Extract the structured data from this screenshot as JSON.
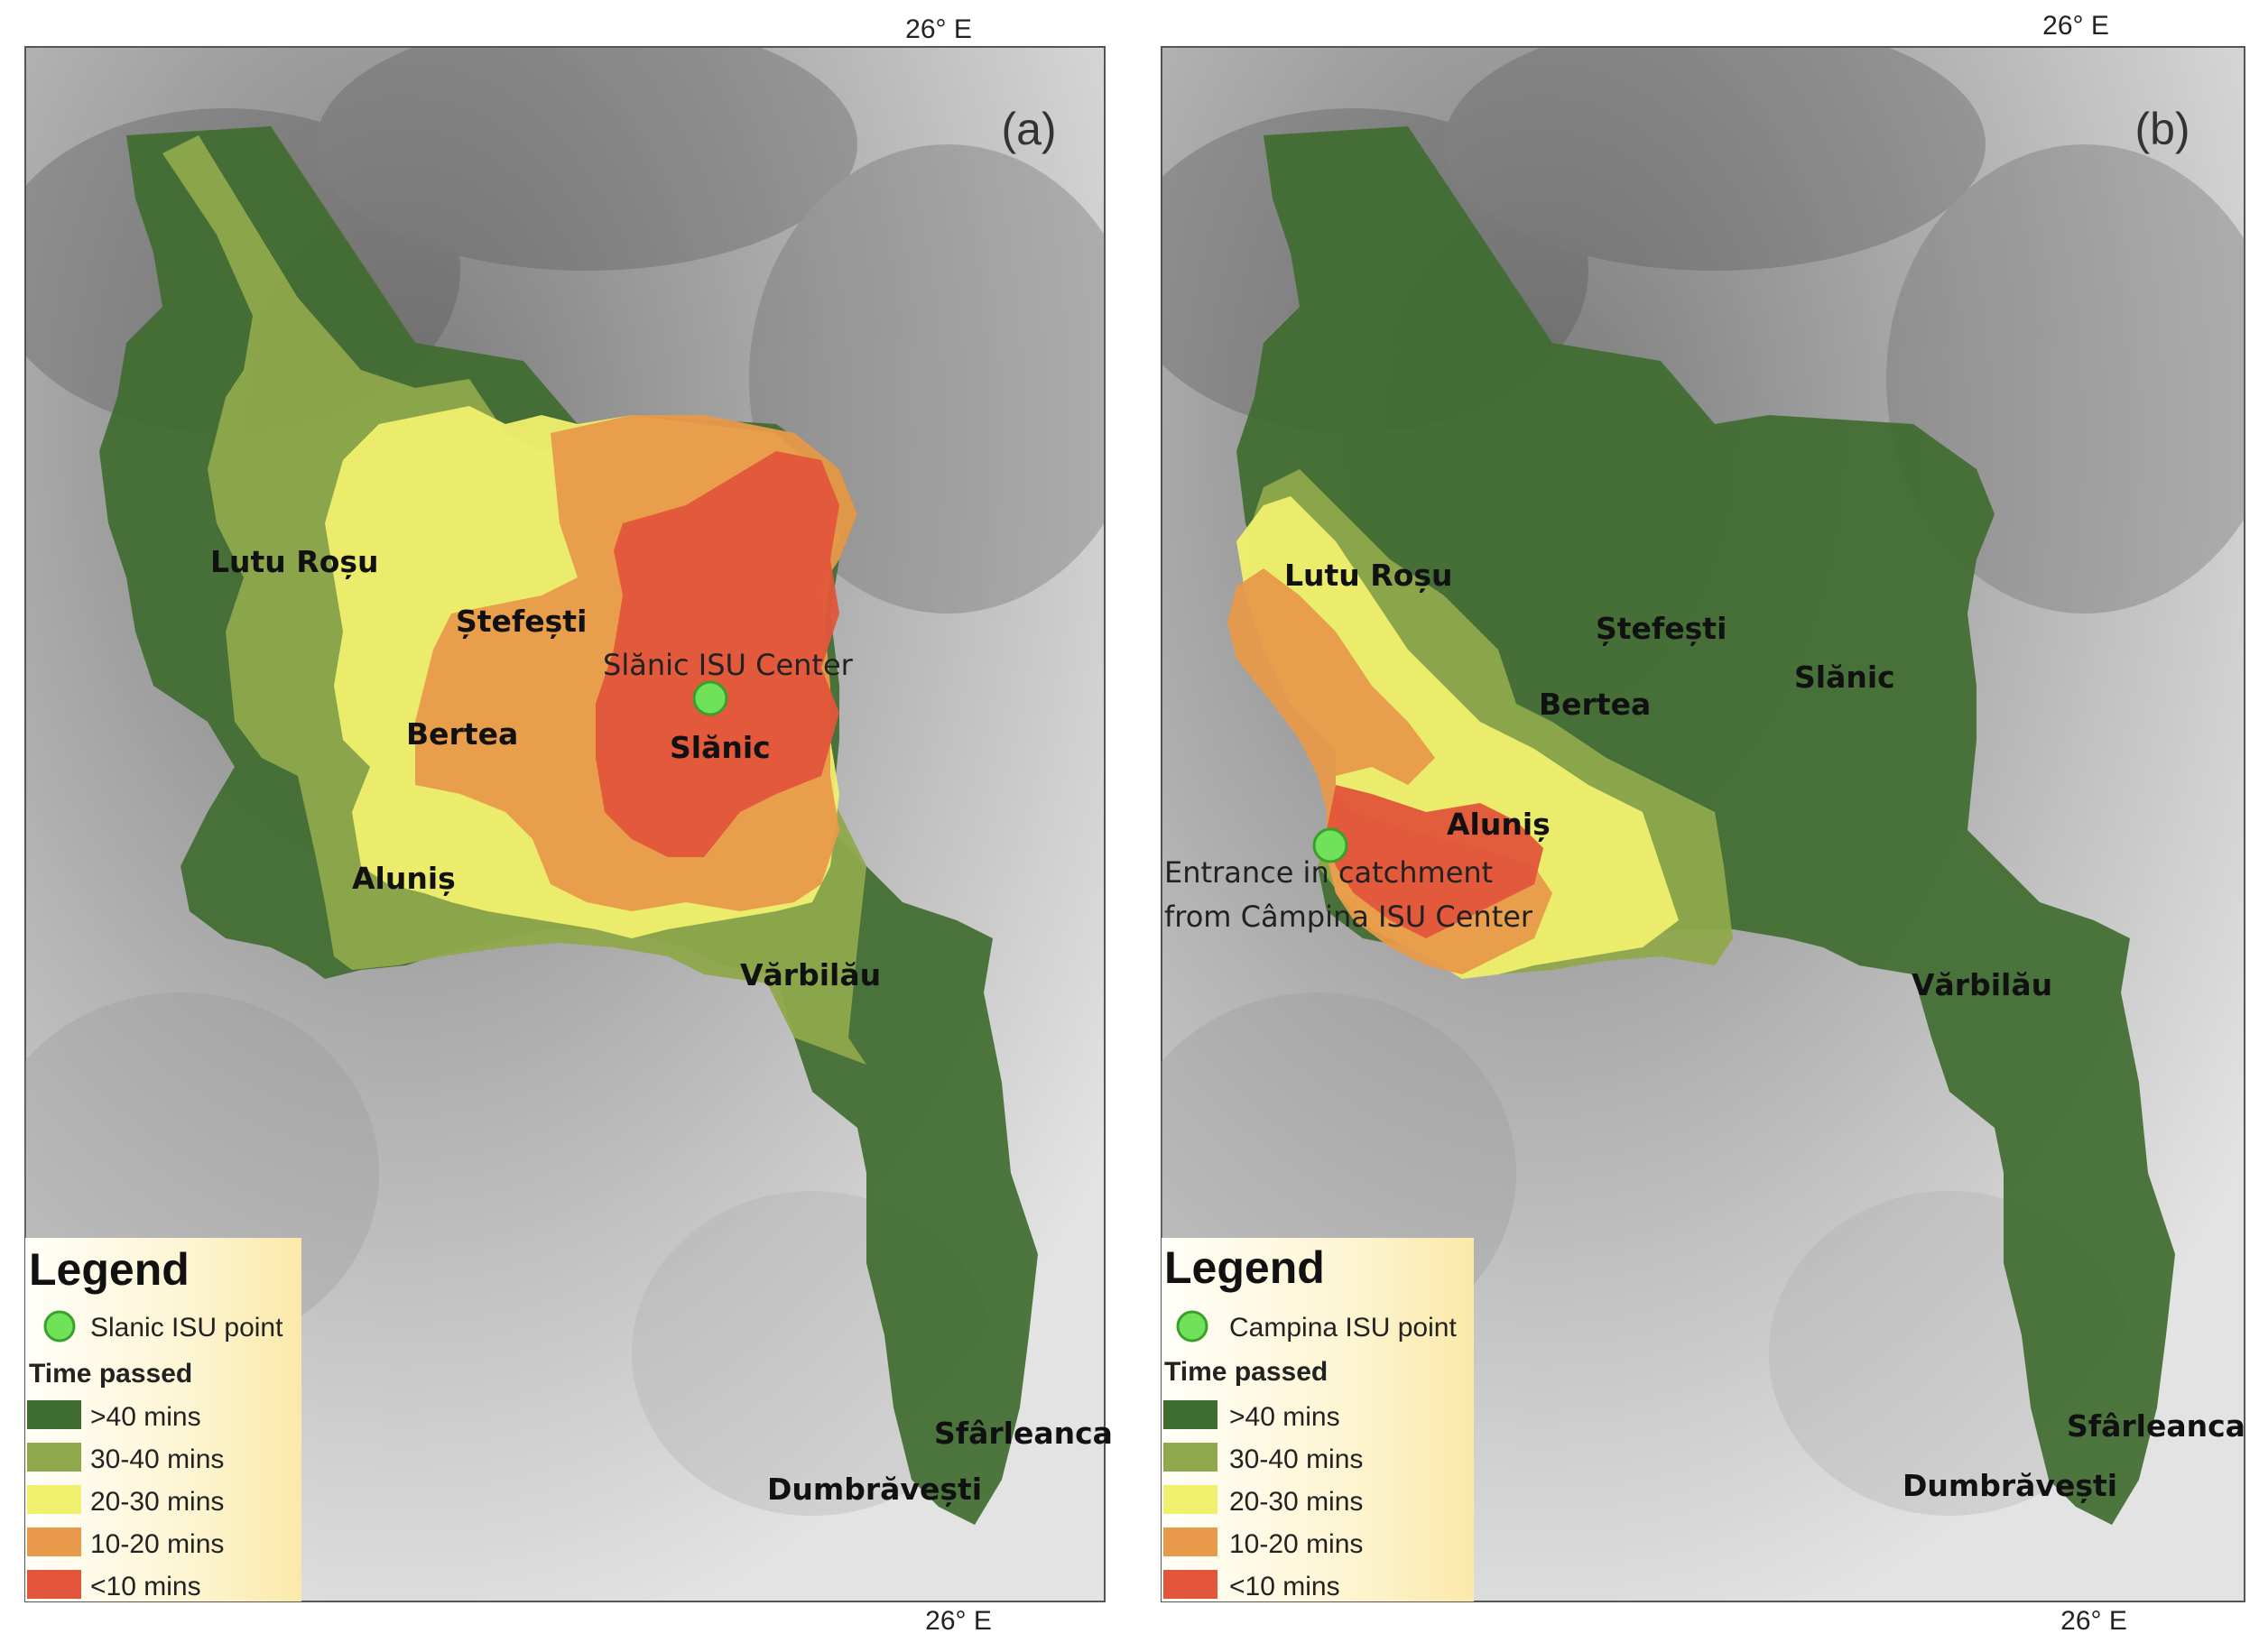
{
  "panels": [
    {
      "letter": "(a)",
      "top_tick": "26° E",
      "bottom_tick": "",
      "legend": {
        "title": "Legend",
        "point_label": "Slanic ISU point",
        "time_title": "Time passed",
        "classes": [
          ">40 mins",
          "30-40 mins",
          "20-30 mins",
          "10-20 mins",
          "<10 mins"
        ]
      },
      "places": [
        "Lutu Roșu",
        "Ștefești",
        "Bertea",
        "Slănic",
        "Aluniș",
        "Vărbilău",
        "Sfârleanca",
        "Dumbrăvești"
      ],
      "annotation": [
        "Slănic ISU Center"
      ]
    },
    {
      "letter": "(b)",
      "top_tick": "26° E",
      "bottom_tick": "26° E",
      "legend": {
        "title": "Legend",
        "point_label": "Campina ISU point",
        "time_title": "Time passed",
        "classes": [
          ">40 mins",
          "30-40 mins",
          "20-30 mins",
          "10-20 mins",
          "<10 mins"
        ]
      },
      "places": [
        "Lutu Roșu",
        "Ștefești",
        "Bertea",
        "Slănic",
        "Aluniș",
        "Vărbilău",
        "Sfârleanca",
        "Dumbrăvești"
      ],
      "annotation": [
        "Entrance in catchment",
        "from Câmpina ISU Center"
      ]
    }
  ],
  "bottom_tick_a": "26° E",
  "colors": {
    "c40plus": "#3f6d30",
    "c30_40": "#8fa84c",
    "c20_30": "#f1ef6e",
    "c10_20": "#e89a4a",
    "c_lt10": "#e2553a",
    "point": "#6fe25a"
  }
}
